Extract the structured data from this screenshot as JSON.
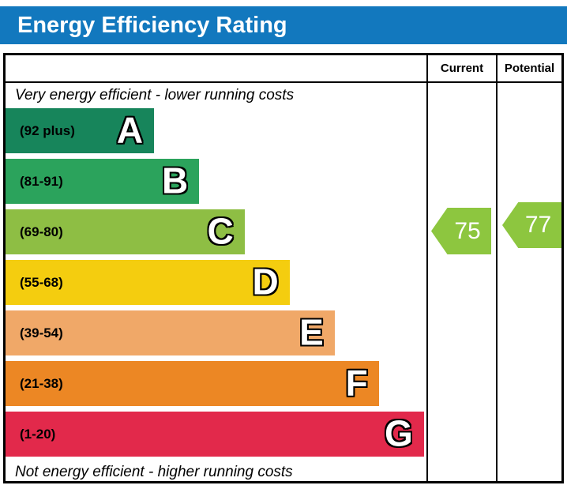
{
  "title_bar": {
    "title": "Energy Efficiency Rating",
    "background": "#1278BE",
    "text_color": "#FFFFFF"
  },
  "table": {
    "columns": {
      "current": "Current",
      "potential": "Potential"
    }
  },
  "chart_data": {
    "type": "bar",
    "title": "Energy Efficiency Rating",
    "top_caption": "Very energy efficient - lower running costs",
    "bottom_caption": "Not energy efficient - higher running costs",
    "bands": [
      {
        "letter": "A",
        "range_label": "(92 plus)",
        "color": "#17855B",
        "width_pct": 35.3
      },
      {
        "letter": "B",
        "range_label": "(81-91)",
        "color": "#2BA35C",
        "width_pct": 46.0
      },
      {
        "letter": "C",
        "range_label": "(69-80)",
        "color": "#8EBE44",
        "width_pct": 56.8
      },
      {
        "letter": "D",
        "range_label": "(55-68)",
        "color": "#F4CD0F",
        "width_pct": 67.5
      },
      {
        "letter": "E",
        "range_label": "(39-54)",
        "color": "#F0A868",
        "width_pct": 78.2
      },
      {
        "letter": "F",
        "range_label": "(21-38)",
        "color": "#EC8724",
        "width_pct": 88.7
      },
      {
        "letter": "G",
        "range_label": "(1-20)",
        "color": "#E2294B",
        "width_pct": 99.4
      }
    ],
    "current": {
      "label": "Current",
      "value": 75,
      "band": "C",
      "arrow_color": "#8DC63F",
      "text_color": "#FFFFFF"
    },
    "potential": {
      "label": "Potential",
      "value": 77,
      "band": "C",
      "arrow_color": "#8DC63F",
      "text_color": "#FFFFFF"
    }
  }
}
